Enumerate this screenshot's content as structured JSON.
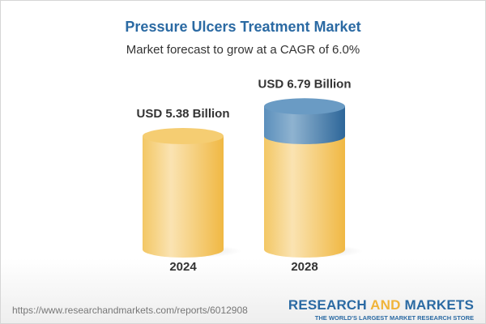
{
  "header": {
    "title": "Pressure Ulcers Treatment Market",
    "subtitle": "Market forecast to grow at a CAGR of 6.0%"
  },
  "chart_data": {
    "type": "bar",
    "style": "3d-cylinder",
    "title": "Pressure Ulcers Treatment Market",
    "subtitle": "Market forecast to grow at a CAGR of 6.0%",
    "categories": [
      "2024",
      "2028"
    ],
    "values": [
      5.38,
      6.79
    ],
    "unit": "USD Billion",
    "data_labels": [
      "USD 5.38 Billion",
      "USD 6.79 Billion"
    ],
    "cagr": "6.0%",
    "colors": {
      "base": "#f3c45c",
      "growth": "#4f86b5"
    },
    "grid": false
  },
  "footer": {
    "url": "https://www.researchandmarkets.com/reports/6012908",
    "logo_part1": "RESEARCH ",
    "logo_part2": "AND",
    "logo_part3": " MARKETS",
    "tagline": "THE WORLD'S LARGEST MARKET RESEARCH STORE"
  }
}
